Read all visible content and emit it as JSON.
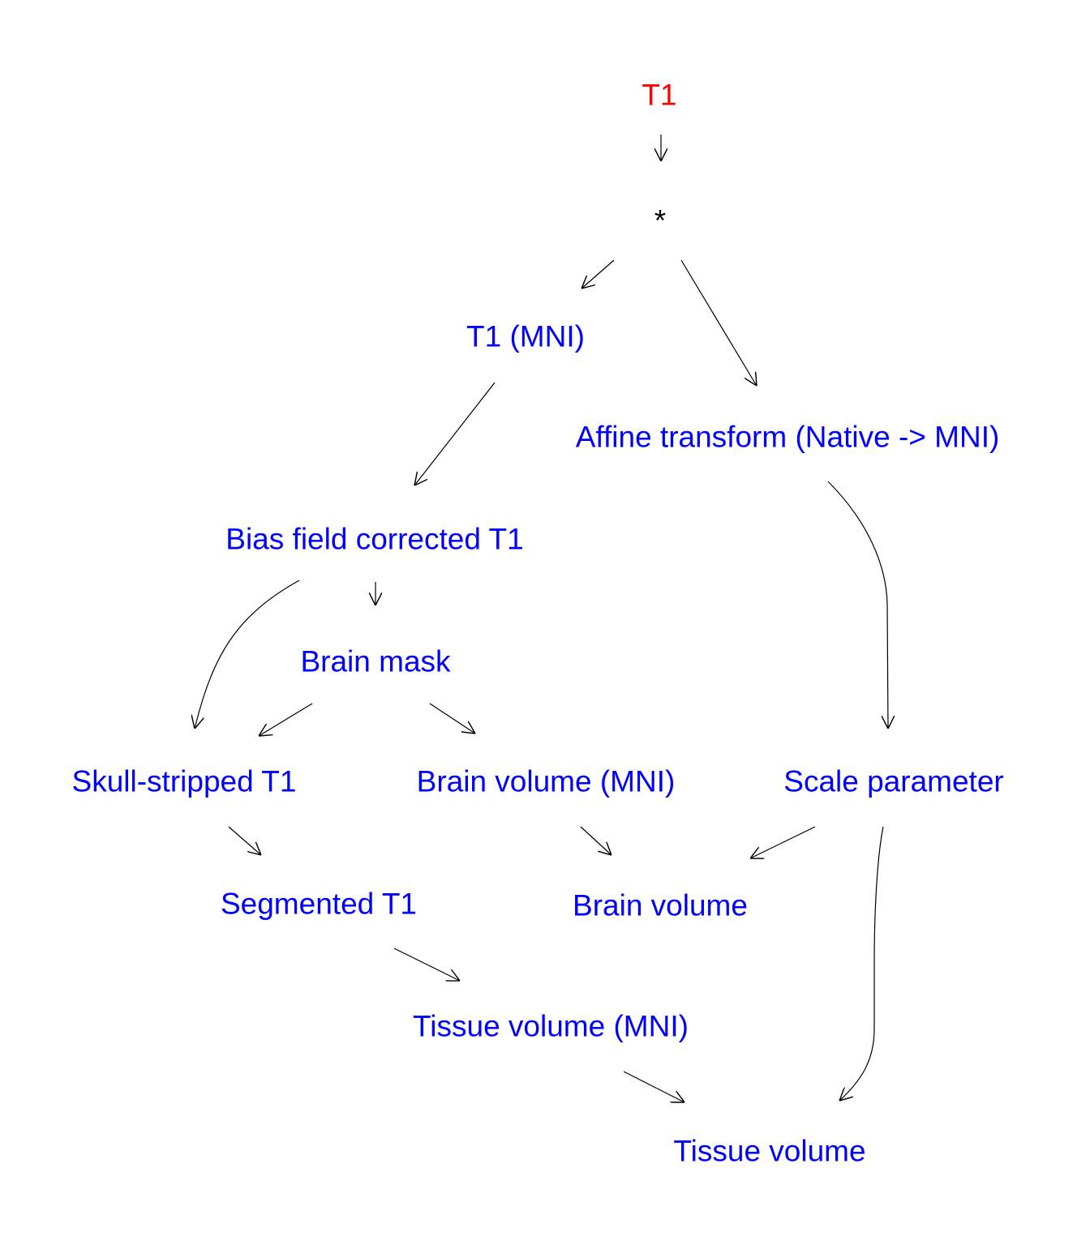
{
  "colors": {
    "source": "#ff0000",
    "derived": "#0000ff",
    "hub": "#000000",
    "edge": "#000000"
  },
  "nodes": {
    "t1": {
      "label": "T1",
      "kind": "source"
    },
    "star": {
      "label": "*",
      "kind": "hub"
    },
    "t1_mni": {
      "label": "T1 (MNI)",
      "kind": "derived"
    },
    "affine": {
      "label": "Affine transform (Native -> MNI)",
      "kind": "derived"
    },
    "bias": {
      "label": "Bias field corrected T1",
      "kind": "derived"
    },
    "brain_mask": {
      "label": "Brain mask",
      "kind": "derived"
    },
    "skull": {
      "label": "Skull-stripped T1",
      "kind": "derived"
    },
    "brain_vol_mni": {
      "label": "Brain volume (MNI)",
      "kind": "derived"
    },
    "scale": {
      "label": "Scale parameter",
      "kind": "derived"
    },
    "segmented": {
      "label": "Segmented T1",
      "kind": "derived"
    },
    "brain_vol": {
      "label": "Brain volume",
      "kind": "derived"
    },
    "tissue_vol_mni": {
      "label": "Tissue volume (MNI)",
      "kind": "derived"
    },
    "tissue_vol": {
      "label": "Tissue volume",
      "kind": "derived"
    }
  },
  "edges": [
    {
      "from": "t1",
      "to": "star"
    },
    {
      "from": "star",
      "to": "t1_mni"
    },
    {
      "from": "star",
      "to": "affine"
    },
    {
      "from": "t1_mni",
      "to": "bias"
    },
    {
      "from": "bias",
      "to": "brain_mask"
    },
    {
      "from": "bias",
      "to": "skull"
    },
    {
      "from": "brain_mask",
      "to": "skull"
    },
    {
      "from": "brain_mask",
      "to": "brain_vol_mni"
    },
    {
      "from": "affine",
      "to": "scale"
    },
    {
      "from": "skull",
      "to": "segmented"
    },
    {
      "from": "brain_vol_mni",
      "to": "brain_vol"
    },
    {
      "from": "scale",
      "to": "brain_vol"
    },
    {
      "from": "scale",
      "to": "tissue_vol"
    },
    {
      "from": "segmented",
      "to": "tissue_vol_mni"
    },
    {
      "from": "tissue_vol_mni",
      "to": "tissue_vol"
    }
  ]
}
